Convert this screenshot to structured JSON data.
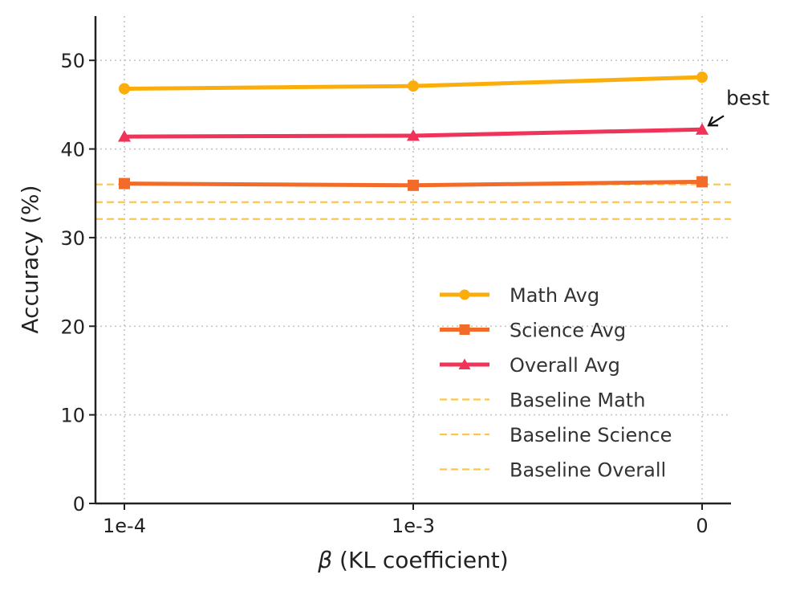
{
  "chart_data": {
    "type": "line",
    "categories": [
      "1e-4",
      "1e-3",
      "0"
    ],
    "xlabel_symbol": "β",
    "xlabel": " (KL coefficient)",
    "ylabel": "Accuracy (%)",
    "ylim": [
      0,
      55
    ],
    "yticks": [
      0,
      10,
      20,
      30,
      40,
      50
    ],
    "grid": true,
    "series": [
      {
        "name": "Math Avg",
        "values": [
          46.8,
          47.1,
          48.1
        ],
        "color": "#FBAD0B",
        "marker": "circle"
      },
      {
        "name": "Science Avg",
        "values": [
          36.1,
          35.9,
          36.3
        ],
        "color": "#F26B28",
        "marker": "square"
      },
      {
        "name": "Overall Avg",
        "values": [
          41.4,
          41.5,
          42.2
        ],
        "color": "#F03358",
        "marker": "triangle"
      }
    ],
    "baselines": [
      {
        "name": "Baseline Math",
        "value": 36.0,
        "color": "#FBC64B"
      },
      {
        "name": "Baseline Science",
        "value": 34.0,
        "color": "#FBC64B"
      },
      {
        "name": "Baseline Overall",
        "value": 32.1,
        "color": "#FBC64B"
      }
    ],
    "annotation": {
      "text": "best",
      "series": "Overall Avg",
      "category": "0"
    },
    "legend_position": "lower-right"
  }
}
